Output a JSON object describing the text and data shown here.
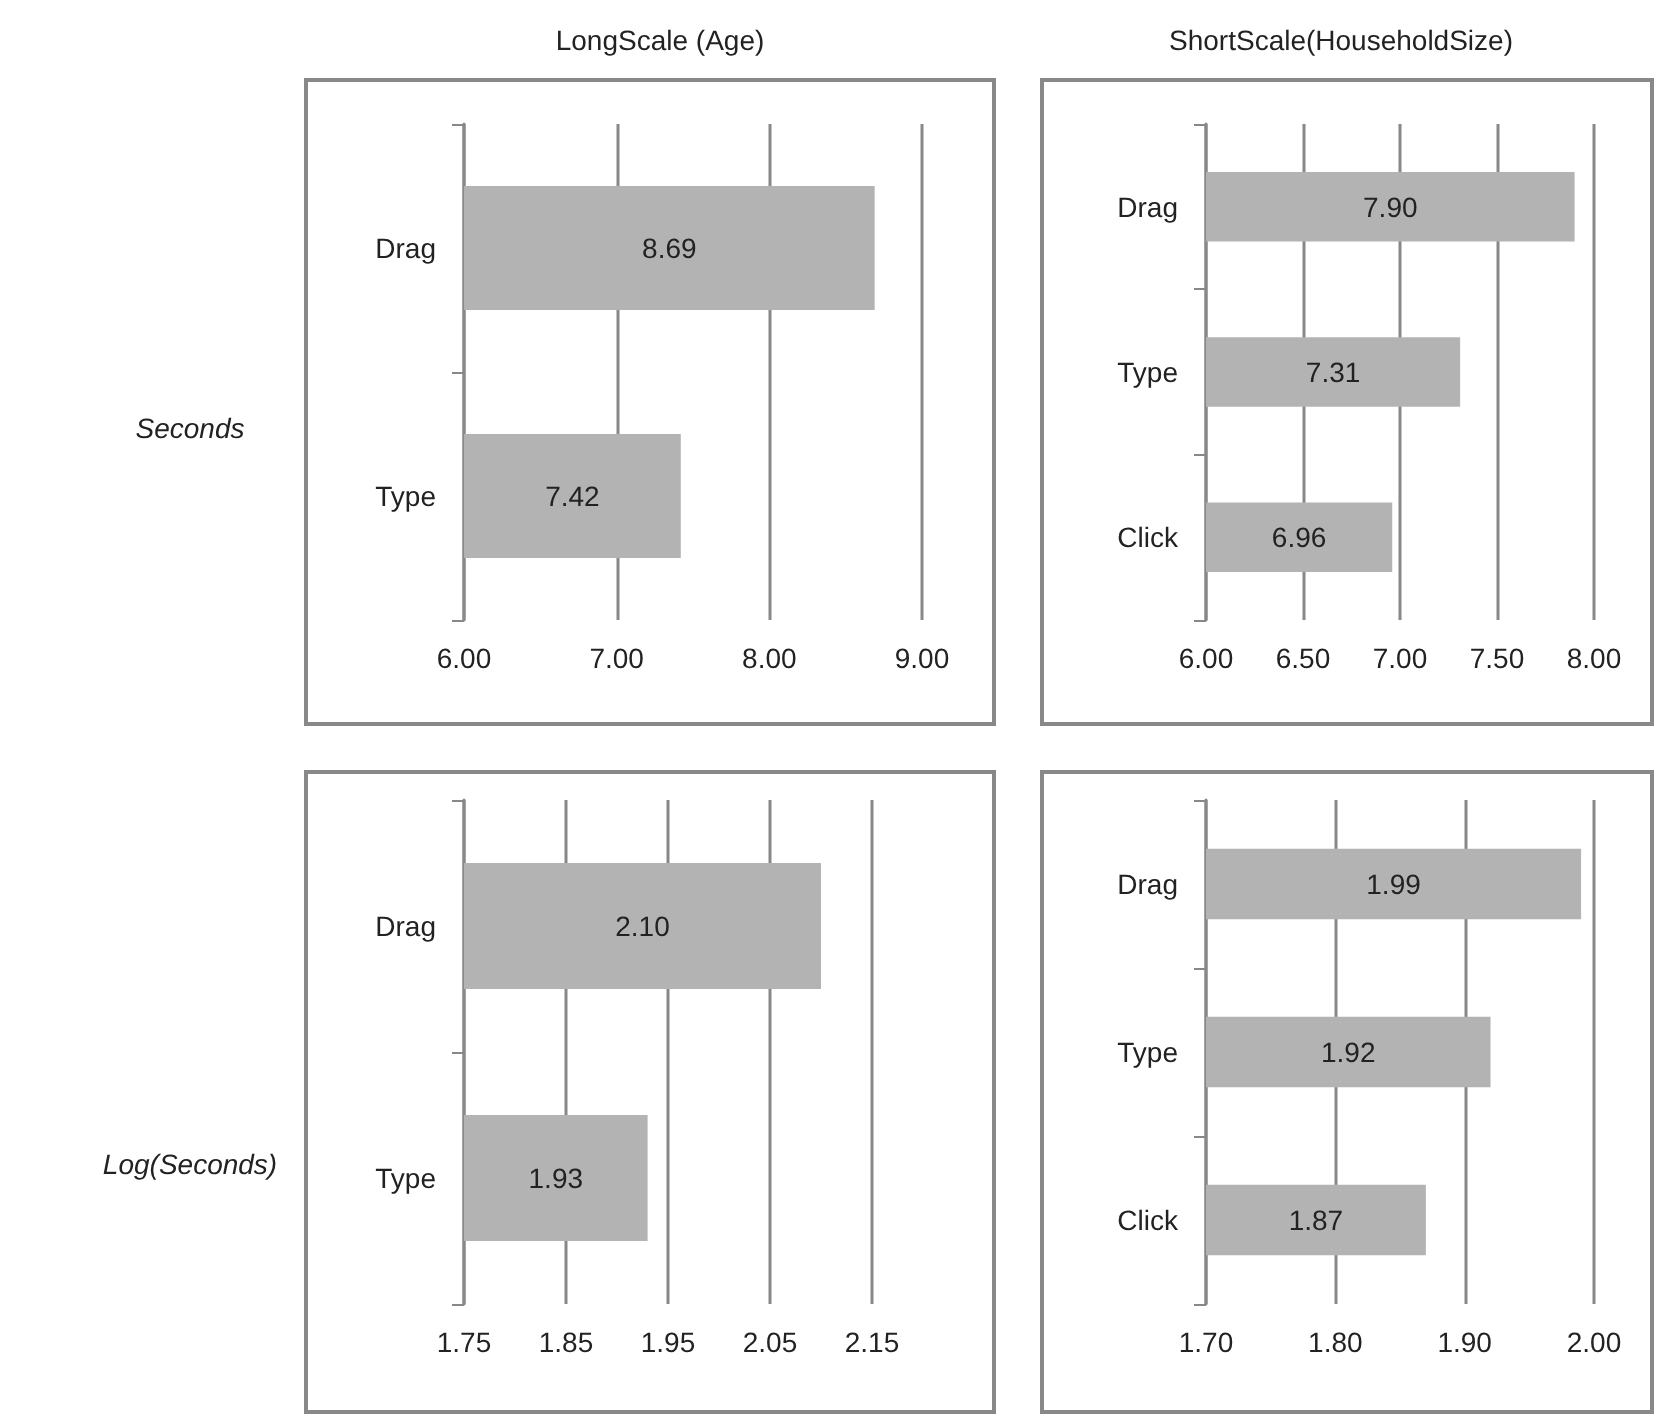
{
  "chart_data": [
    {
      "type": "bar",
      "orientation": "horizontal",
      "title": "LongScale (Age)",
      "ylabel": "Seconds",
      "categories": [
        "Drag",
        "Type"
      ],
      "values": [
        8.69,
        7.42
      ],
      "value_labels": [
        "8.69",
        "7.42"
      ],
      "color": "#b3b3b3",
      "xlim": [
        6,
        9
      ],
      "xticks": [
        {
          "value": 6,
          "label": "6.00"
        },
        {
          "value": 7,
          "label": "7.00"
        },
        {
          "value": 8,
          "label": "8.00"
        },
        {
          "value": 9,
          "label": "9.00"
        }
      ],
      "grid": "x"
    },
    {
      "type": "bar",
      "orientation": "horizontal",
      "title": "ShortScale(HouseholdSize)",
      "categories": [
        "Drag",
        "Type",
        "Click"
      ],
      "values": [
        7.9,
        7.31,
        6.96
      ],
      "value_labels": [
        "7.90",
        "7.31",
        "6.96"
      ],
      "color": "#b3b3b3",
      "xlim": [
        6,
        8
      ],
      "xticks": [
        {
          "value": 6,
          "label": "6.00"
        },
        {
          "value": 6.5,
          "label": "6.50"
        },
        {
          "value": 7,
          "label": "7.00"
        },
        {
          "value": 7.5,
          "label": "7.50"
        },
        {
          "value": 8,
          "label": "8.00"
        }
      ],
      "grid": "x"
    },
    {
      "type": "bar",
      "orientation": "horizontal",
      "ylabel": "Log(Seconds)",
      "categories": [
        "Drag",
        "Type"
      ],
      "values": [
        2.1,
        1.93
      ],
      "value_labels": [
        "2.10",
        "1.93"
      ],
      "color": "#b3b3b3",
      "xlim": [
        1.75,
        2.15
      ],
      "xticks": [
        {
          "value": 1.75,
          "label": "1.75"
        },
        {
          "value": 1.85,
          "label": "1.85"
        },
        {
          "value": 1.95,
          "label": "1.95"
        },
        {
          "value": 2.05,
          "label": "2.05"
        },
        {
          "value": 2.15,
          "label": "2.15"
        }
      ],
      "grid": "x"
    },
    {
      "type": "bar",
      "orientation": "horizontal",
      "categories": [
        "Drag",
        "Type",
        "Click"
      ],
      "values": [
        1.99,
        1.92,
        1.87
      ],
      "value_labels": [
        "1.99",
        "1.92",
        "1.87"
      ],
      "color": "#b3b3b3",
      "xlim": [
        1.7,
        2.0
      ],
      "xticks": [
        {
          "value": 1.7,
          "label": "1.70"
        },
        {
          "value": 1.8,
          "label": "1.80"
        },
        {
          "value": 1.9,
          "label": "1.90"
        },
        {
          "value": 2.0,
          "label": "2.00"
        }
      ],
      "grid": "x"
    }
  ]
}
